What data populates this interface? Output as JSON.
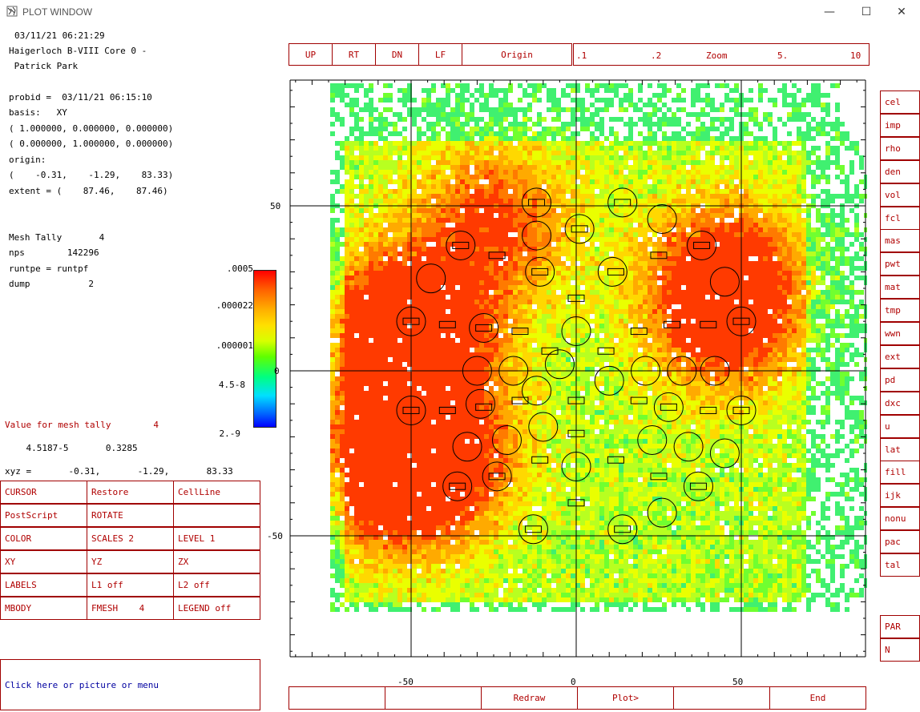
{
  "window": {
    "title": "PLOT WINDOW",
    "minimize_glyph": "—",
    "maximize_glyph": "☐",
    "close_glyph": "✕"
  },
  "info": {
    "timestamp": "03/11/21 06:21:29",
    "run_title_1": "Haigerloch B-VIII Core 0 -",
    "run_title_2": " Patrick Park",
    "probid": "probid =  03/11/21 06:15:10",
    "basis": "basis:   XY",
    "basis_v1": "( 1.000000, 0.000000, 0.000000)",
    "basis_v2": "( 0.000000, 1.000000, 0.000000)",
    "origin_label": "origin:",
    "origin_value": "(    -0.31,    -1.29,    83.33)",
    "extent": "extent = (    87.46,    87.46)",
    "mesh_tally": "Mesh Tally       4",
    "nps": "nps        142296",
    "runtpe": "runtpe = runtpf",
    "dump": "dump           2",
    "value_label": "Value for mesh tally        4",
    "value_numbers": "    4.5187-5       0.3285",
    "xyz": "xyz =       -0.31,       -1.29,       83.33"
  },
  "colorbar": {
    "labels": [
      ".0005",
      ".000022",
      ".000001",
      "4.5-8",
      "2.-9"
    ]
  },
  "top_buttons": [
    "UP",
    "RT",
    "DN",
    "LF",
    "Origin"
  ],
  "zoom_bar": {
    "z1": ".1",
    "z2": ".2",
    "label": "Zoom",
    "z5": "5.",
    "z10": "10"
  },
  "command_grid": [
    [
      "CURSOR",
      "Restore",
      "CellLine"
    ],
    [
      "PostScript",
      "ROTATE",
      ""
    ],
    [
      "COLOR",
      "SCALES 2",
      "LEVEL 1"
    ],
    [
      "XY",
      "YZ",
      "ZX"
    ],
    [
      "LABELS",
      "L1 off",
      "L2 off"
    ],
    [
      "MBODY",
      "FMESH    4",
      "LEGEND off"
    ]
  ],
  "side_buttons": [
    "cel",
    "imp",
    "rho",
    "den",
    "vol",
    "fcl",
    "mas",
    "pwt",
    "mat",
    "tmp",
    "wwn",
    "ext",
    "pd",
    "dxc",
    "u",
    "lat",
    "fill",
    "ijk",
    "nonu",
    "pac",
    "tal"
  ],
  "side_buttons_lower": [
    "PAR",
    "N"
  ],
  "bottom_buttons": [
    "",
    "",
    "Redraw",
    "Plot>",
    "",
    "End"
  ],
  "prompt": "Click here or picture or menu",
  "axes": {
    "x_ticks": [
      "-50",
      "0",
      "50"
    ],
    "y_ticks": [
      "50",
      "0",
      "-50"
    ],
    "range": [
      -87.46,
      87.46
    ]
  },
  "colors": {
    "button_border": "#a00000",
    "button_text": "#b00000",
    "prompt_text": "#0000a0"
  }
}
